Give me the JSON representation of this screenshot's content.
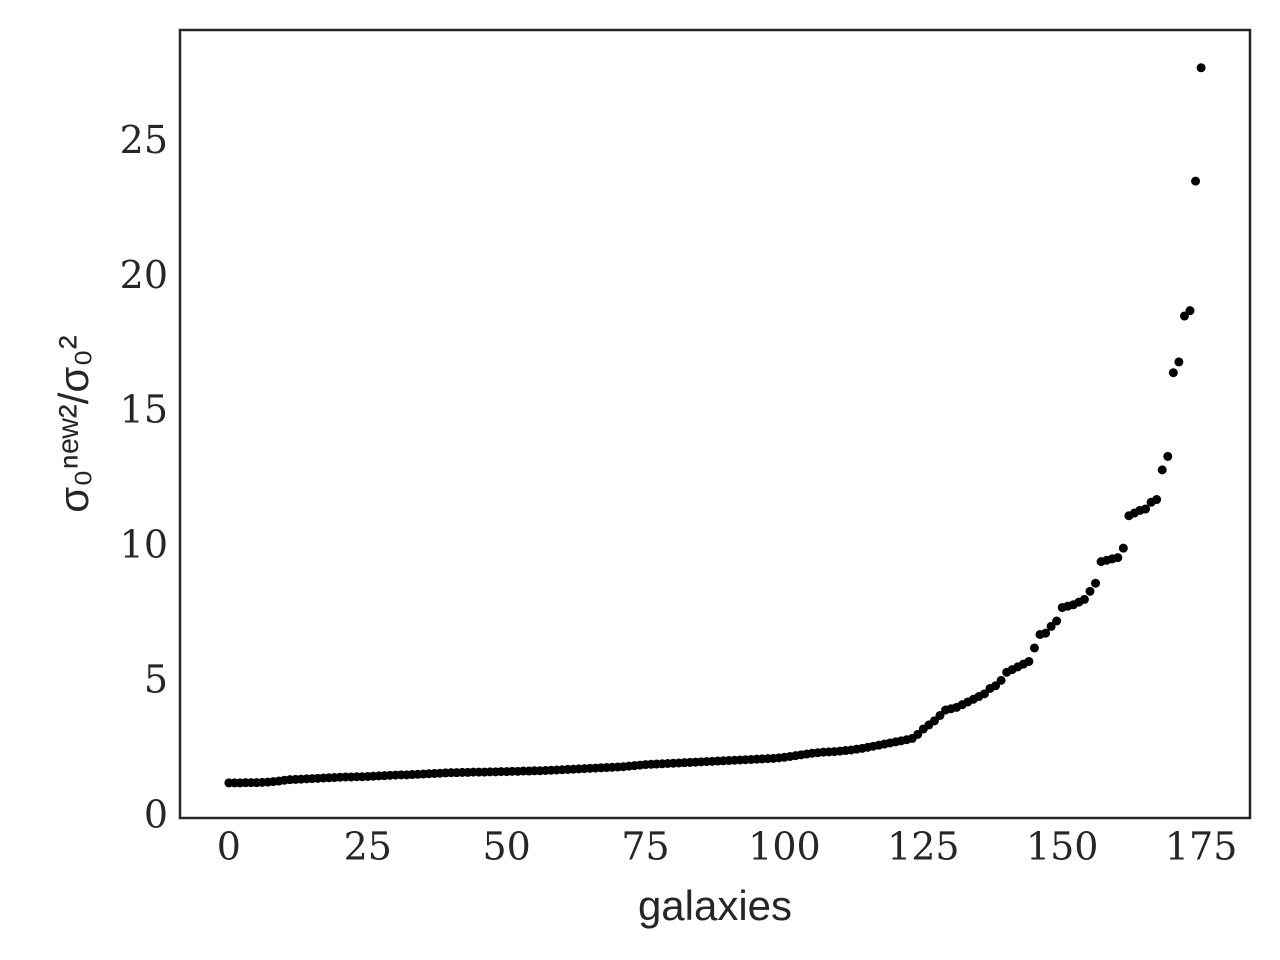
{
  "chart_data": {
    "type": "scatter",
    "xlabel": "galaxies",
    "ylabel": "σ₀ⁿᵉʷ²/σ₀²",
    "color": "#000000",
    "grid": false,
    "xlim": [
      -8.8,
      183.8
    ],
    "ylim": [
      0,
      29.2
    ],
    "xticks": [
      0,
      25,
      50,
      75,
      100,
      125,
      150,
      175
    ],
    "yticks": [
      0,
      5,
      10,
      15,
      20,
      25
    ],
    "x": [
      0,
      1,
      2,
      3,
      4,
      5,
      6,
      7,
      8,
      9,
      10,
      11,
      12,
      13,
      14,
      15,
      16,
      17,
      18,
      19,
      20,
      21,
      22,
      23,
      24,
      25,
      26,
      27,
      28,
      29,
      30,
      31,
      32,
      33,
      34,
      35,
      36,
      37,
      38,
      39,
      40,
      41,
      42,
      43,
      44,
      45,
      46,
      47,
      48,
      49,
      50,
      51,
      52,
      53,
      54,
      55,
      56,
      57,
      58,
      59,
      60,
      61,
      62,
      63,
      64,
      65,
      66,
      67,
      68,
      69,
      70,
      71,
      72,
      73,
      74,
      75,
      76,
      77,
      78,
      79,
      80,
      81,
      82,
      83,
      84,
      85,
      86,
      87,
      88,
      89,
      90,
      91,
      92,
      93,
      94,
      95,
      96,
      97,
      98,
      99,
      100,
      101,
      102,
      103,
      104,
      105,
      106,
      107,
      108,
      109,
      110,
      111,
      112,
      113,
      114,
      115,
      116,
      117,
      118,
      119,
      120,
      121,
      122,
      123,
      124,
      125,
      126,
      127,
      128,
      129,
      130,
      131,
      132,
      133,
      134,
      135,
      136,
      137,
      138,
      139,
      140,
      141,
      142,
      143,
      144,
      145,
      146,
      147,
      148,
      149,
      150,
      151,
      152,
      153,
      154,
      155,
      156,
      157,
      158,
      159,
      160,
      161,
      162,
      163,
      164,
      165,
      166,
      167,
      168,
      169,
      170,
      171,
      172,
      173,
      174,
      175
    ],
    "values": [
      1.3,
      1.3,
      1.3,
      1.31,
      1.31,
      1.31,
      1.32,
      1.33,
      1.35,
      1.37,
      1.4,
      1.42,
      1.43,
      1.44,
      1.45,
      1.46,
      1.47,
      1.48,
      1.49,
      1.5,
      1.51,
      1.52,
      1.52,
      1.53,
      1.53,
      1.54,
      1.55,
      1.56,
      1.57,
      1.58,
      1.59,
      1.6,
      1.6,
      1.61,
      1.62,
      1.63,
      1.64,
      1.65,
      1.66,
      1.67,
      1.68,
      1.68,
      1.69,
      1.69,
      1.7,
      1.7,
      1.7,
      1.71,
      1.71,
      1.72,
      1.72,
      1.73,
      1.73,
      1.74,
      1.74,
      1.75,
      1.75,
      1.76,
      1.77,
      1.78,
      1.79,
      1.8,
      1.81,
      1.82,
      1.83,
      1.84,
      1.85,
      1.86,
      1.87,
      1.88,
      1.89,
      1.9,
      1.92,
      1.94,
      1.96,
      1.98,
      1.99,
      2.0,
      2.01,
      2.02,
      2.03,
      2.04,
      2.05,
      2.06,
      2.07,
      2.08,
      2.09,
      2.1,
      2.11,
      2.12,
      2.13,
      2.14,
      2.15,
      2.16,
      2.17,
      2.18,
      2.19,
      2.2,
      2.21,
      2.23,
      2.25,
      2.28,
      2.31,
      2.34,
      2.37,
      2.4,
      2.42,
      2.44,
      2.45,
      2.46,
      2.48,
      2.5,
      2.52,
      2.55,
      2.58,
      2.62,
      2.66,
      2.7,
      2.74,
      2.78,
      2.82,
      2.86,
      2.9,
      2.95,
      3.1,
      3.3,
      3.45,
      3.6,
      3.8,
      4.0,
      4.05,
      4.1,
      4.2,
      4.3,
      4.4,
      4.5,
      4.6,
      4.8,
      4.9,
      5.1,
      5.4,
      5.5,
      5.6,
      5.7,
      5.8,
      6.3,
      6.8,
      6.85,
      7.1,
      7.3,
      7.8,
      7.85,
      7.9,
      8.0,
      8.1,
      8.4,
      8.7,
      9.5,
      9.55,
      9.6,
      9.65,
      10.0,
      11.2,
      11.3,
      11.4,
      11.45,
      11.7,
      11.8,
      12.9,
      13.4,
      16.5,
      16.9,
      18.6,
      18.8,
      23.6,
      27.8
    ]
  }
}
